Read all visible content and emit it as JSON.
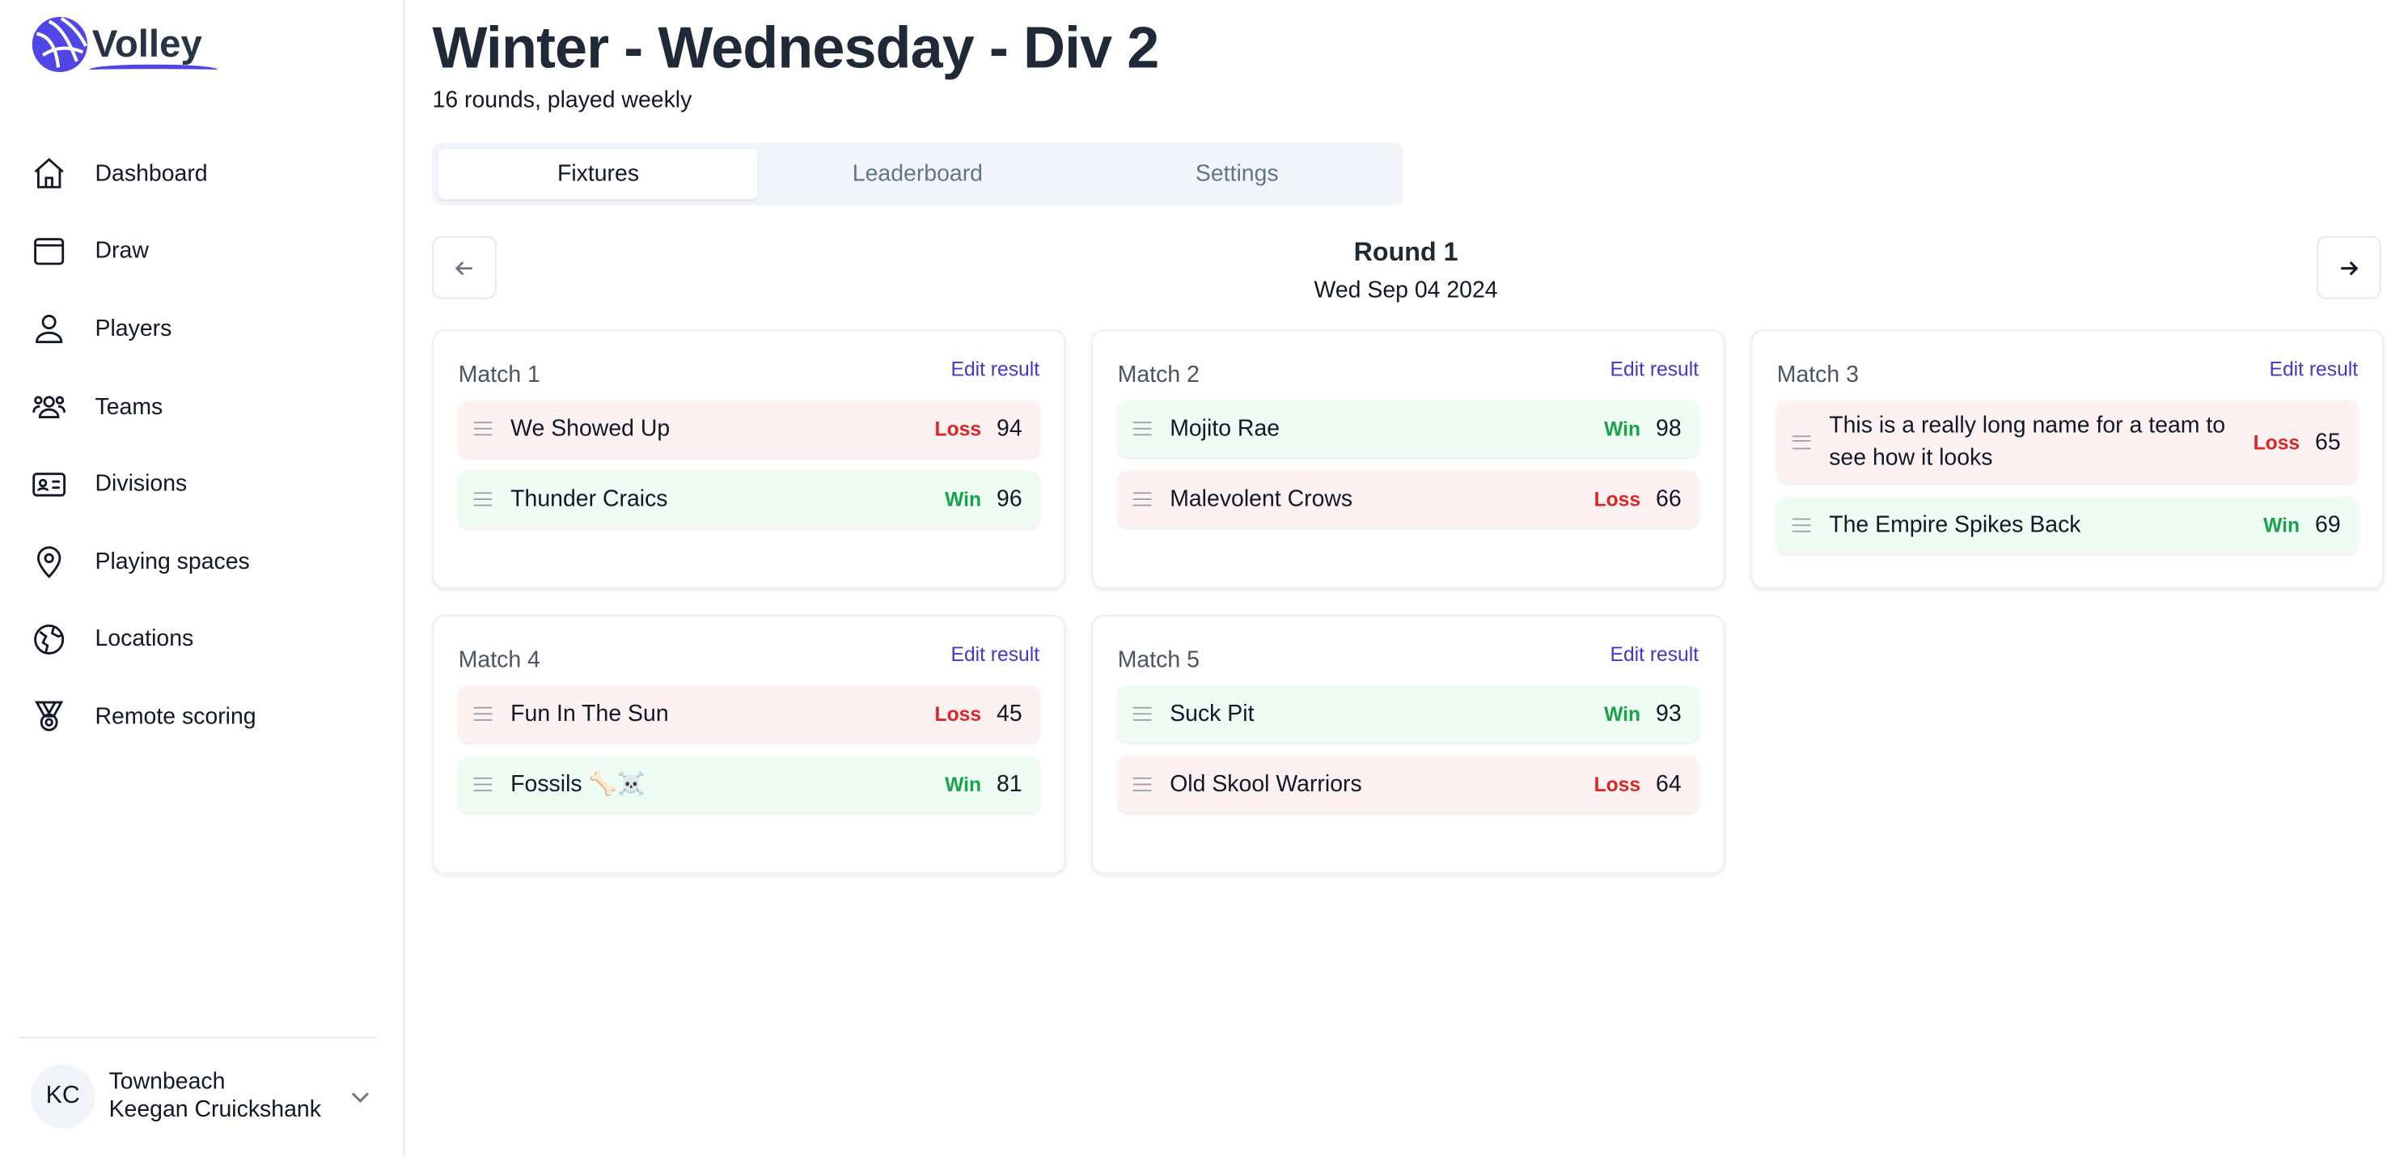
{
  "app": {
    "name": "Volley"
  },
  "sidebar": {
    "items": [
      {
        "label": "Dashboard",
        "icon": "home-icon"
      },
      {
        "label": "Draw",
        "icon": "window-icon"
      },
      {
        "label": "Players",
        "icon": "user-icon"
      },
      {
        "label": "Teams",
        "icon": "users-icon"
      },
      {
        "label": "Divisions",
        "icon": "id-card-icon"
      },
      {
        "label": "Playing spaces",
        "icon": "map-pin-icon"
      },
      {
        "label": "Locations",
        "icon": "globe-icon"
      },
      {
        "label": "Remote scoring",
        "icon": "medal-icon"
      }
    ],
    "user": {
      "initials": "KC",
      "org": "Townbeach",
      "name": "Keegan Cruickshank"
    }
  },
  "header": {
    "title": "Winter - Wednesday - Div 2",
    "subtitle": "16 rounds, played weekly"
  },
  "tabs": [
    {
      "label": "Fixtures",
      "active": true
    },
    {
      "label": "Leaderboard"
    },
    {
      "label": "Settings"
    }
  ],
  "round": {
    "title": "Round 1",
    "date": "Wed Sep 04 2024"
  },
  "edit_label": "Edit result",
  "matches": [
    {
      "label": "Match 1",
      "teams": [
        {
          "name": "We Showed Up",
          "result": "Loss",
          "score": "94"
        },
        {
          "name": "Thunder Craics",
          "result": "Win",
          "score": "96"
        }
      ]
    },
    {
      "label": "Match 2",
      "teams": [
        {
          "name": "Mojito Rae",
          "result": "Win",
          "score": "98"
        },
        {
          "name": "Malevolent Crows",
          "result": "Loss",
          "score": "66"
        }
      ]
    },
    {
      "label": "Match 3",
      "teams": [
        {
          "name": "This is a really long name for a team to see how it looks",
          "result": "Loss",
          "score": "65"
        },
        {
          "name": "The Empire Spikes Back",
          "result": "Win",
          "score": "69"
        }
      ]
    },
    {
      "label": "Match 4",
      "teams": [
        {
          "name": "Fun In The Sun",
          "result": "Loss",
          "score": "45"
        },
        {
          "name": "Fossils 🦴☠️",
          "result": "Win",
          "score": "81"
        }
      ]
    },
    {
      "label": "Match 5",
      "teams": [
        {
          "name": "Suck Pit",
          "result": "Win",
          "score": "93"
        },
        {
          "name": "Old Skool Warriors",
          "result": "Loss",
          "score": "64"
        }
      ]
    }
  ]
}
